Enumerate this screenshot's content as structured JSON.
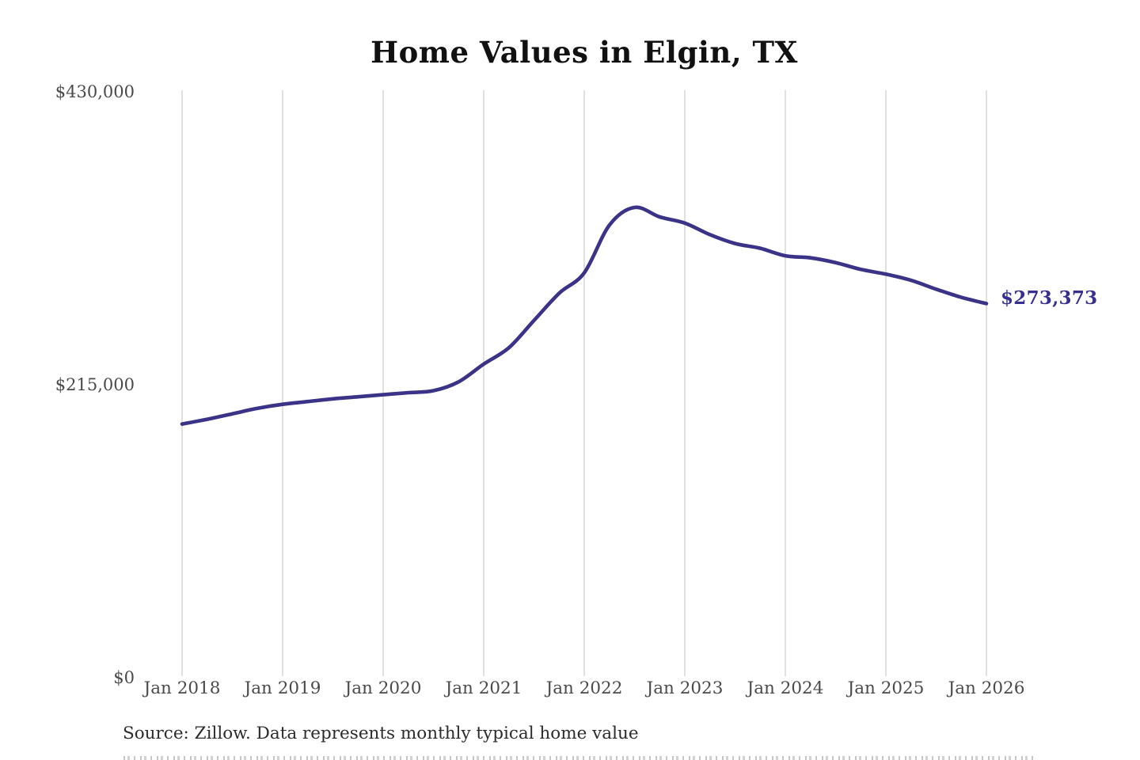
{
  "chart_data": {
    "type": "line",
    "title": "Home Values in Elgin, TX",
    "x_tick_labels": [
      "Jan 2018",
      "Jan 2019",
      "Jan 2020",
      "Jan 2021",
      "Jan 2022",
      "Jan 2023",
      "Jan 2024",
      "Jan 2025",
      "Jan 2026"
    ],
    "y_ticks": [
      {
        "label": "$430,000",
        "value": 430000
      },
      {
        "label": "$215,000",
        "value": 215000
      },
      {
        "label": "$0",
        "value": 0
      }
    ],
    "ylim": [
      0,
      430000
    ],
    "x_axis": {
      "start": "Jan 2018",
      "end": "Jan 2026",
      "months": 96
    },
    "grid": {
      "vertical": true,
      "horizontal": false,
      "color": "#cccccc"
    },
    "legend": "none",
    "series": [
      {
        "name": "Typical home value (monthly)",
        "color": "#3a3388",
        "points_unit": "[months since Jan 2018, USD]",
        "points": [
          [
            0,
            185000
          ],
          [
            3,
            188500
          ],
          [
            6,
            192500
          ],
          [
            9,
            196500
          ],
          [
            12,
            199500
          ],
          [
            15,
            201500
          ],
          [
            18,
            203500
          ],
          [
            21,
            205000
          ],
          [
            24,
            206500
          ],
          [
            27,
            208000
          ],
          [
            30,
            209500
          ],
          [
            33,
            216000
          ],
          [
            36,
            229000
          ],
          [
            39,
            241000
          ],
          [
            42,
            261000
          ],
          [
            45,
            281000
          ],
          [
            48,
            296000
          ],
          [
            51,
            331000
          ],
          [
            54,
            344000
          ],
          [
            57,
            337000
          ],
          [
            60,
            332500
          ],
          [
            63,
            324000
          ],
          [
            66,
            317500
          ],
          [
            69,
            314000
          ],
          [
            72,
            308500
          ],
          [
            75,
            307000
          ],
          [
            78,
            303500
          ],
          [
            81,
            298500
          ],
          [
            84,
            295000
          ],
          [
            87,
            290500
          ],
          [
            90,
            284000
          ],
          [
            93,
            278000
          ],
          [
            96,
            273373
          ]
        ]
      }
    ],
    "end_label": {
      "text": "$273,373",
      "value": 273373,
      "color": "#37308f"
    },
    "source_note": "Source: Zillow. Data represents monthly typical home value"
  }
}
